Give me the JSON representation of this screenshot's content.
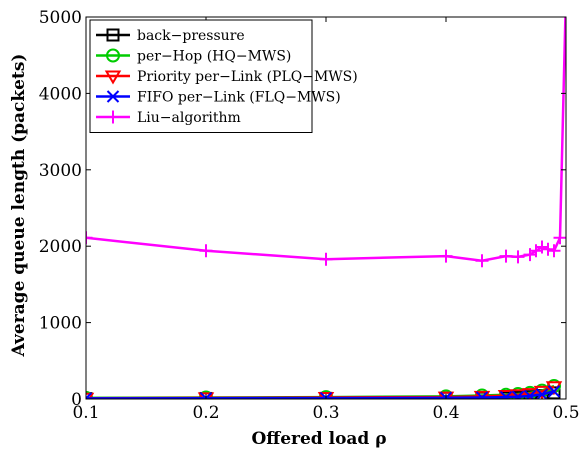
{
  "chart_data": {
    "type": "line",
    "title": "",
    "xlabel": "Offered load ρ",
    "ylabel": "Average queue length (packets)",
    "xlim": [
      0.1,
      0.5
    ],
    "ylim": [
      0,
      5000
    ],
    "xticks": [
      "0.1",
      "0.2",
      "0.3",
      "0.4",
      "0.5"
    ],
    "xtick_values": [
      0.1,
      0.2,
      0.3,
      0.4,
      0.5
    ],
    "yticks": [
      "0",
      "1000",
      "2000",
      "3000",
      "4000",
      "5000"
    ],
    "ytick_values": [
      0,
      1000,
      2000,
      3000,
      4000,
      5000
    ],
    "grid": false,
    "legend_position": "top-left",
    "series": [
      {
        "name": "back−pressure",
        "color": "#000000",
        "marker": "square",
        "x": [
          0.1,
          0.2,
          0.3,
          0.4,
          0.43,
          0.45,
          0.46,
          0.47,
          0.48,
          0.49
        ],
        "y": [
          5,
          7,
          8,
          10,
          12,
          15,
          20,
          30,
          45,
          80
        ]
      },
      {
        "name": "per−Hop (HQ−MWS)",
        "color": "#00cc00",
        "marker": "circle",
        "x": [
          0.1,
          0.2,
          0.3,
          0.4,
          0.43,
          0.45,
          0.46,
          0.47,
          0.48,
          0.49
        ],
        "y": [
          15,
          20,
          25,
          35,
          45,
          55,
          65,
          80,
          110,
          170
        ]
      },
      {
        "name": "Priority per−Link (PLQ−MWS)",
        "color": "#ff0000",
        "marker": "triangle-down",
        "x": [
          0.1,
          0.2,
          0.3,
          0.4,
          0.43,
          0.45,
          0.46,
          0.47,
          0.48,
          0.49
        ],
        "y": [
          10,
          15,
          20,
          25,
          35,
          45,
          55,
          70,
          100,
          160
        ]
      },
      {
        "name": "FIFO per−Link (FLQ−MWS)",
        "color": "#0000ff",
        "marker": "x",
        "x": [
          0.1,
          0.2,
          0.3,
          0.4,
          0.43,
          0.45,
          0.46,
          0.47,
          0.48,
          0.49
        ],
        "y": [
          8,
          10,
          12,
          15,
          20,
          25,
          30,
          40,
          60,
          100
        ]
      },
      {
        "name": "Liu−algorithm",
        "color": "#ff00ff",
        "marker": "plus",
        "x": [
          0.1,
          0.2,
          0.3,
          0.4,
          0.43,
          0.45,
          0.46,
          0.47,
          0.475,
          0.48,
          0.485,
          0.49,
          0.495,
          0.4995
        ],
        "y": [
          2110,
          1940,
          1830,
          1870,
          1810,
          1870,
          1860,
          1890,
          1940,
          1990,
          1960,
          1940,
          2110,
          5000
        ]
      }
    ]
  }
}
